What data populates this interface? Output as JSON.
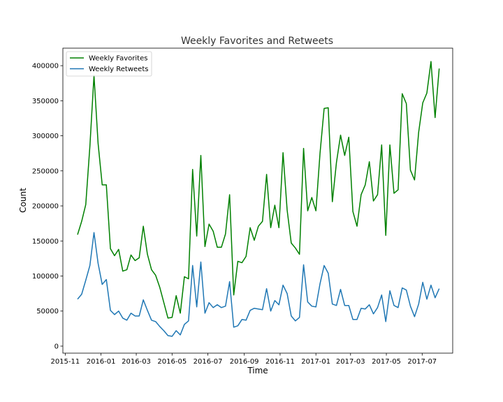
{
  "chart_data": {
    "type": "line",
    "title": "Weekly Favorites and Retweets",
    "xlabel": "Time",
    "ylabel": "Count",
    "x_range": [
      "2015-10-28",
      "2017-08-22"
    ],
    "ylim": [
      -10000,
      425000
    ],
    "legend_position": "top-left",
    "grid": false,
    "x_ticks": [
      {
        "date": "2015-11-01",
        "label": "2015-11"
      },
      {
        "date": "2016-01-01",
        "label": "2016-01"
      },
      {
        "date": "2016-03-01",
        "label": "2016-03"
      },
      {
        "date": "2016-05-01",
        "label": "2016-05"
      },
      {
        "date": "2016-07-01",
        "label": "2016-07"
      },
      {
        "date": "2016-09-01",
        "label": "2016-09"
      },
      {
        "date": "2016-11-01",
        "label": "2016-11"
      },
      {
        "date": "2017-01-01",
        "label": "2017-01"
      },
      {
        "date": "2017-03-01",
        "label": "2017-03"
      },
      {
        "date": "2017-05-01",
        "label": "2017-05"
      },
      {
        "date": "2017-07-01",
        "label": "2017-07"
      }
    ],
    "y_ticks": [
      {
        "value": 0,
        "label": "0"
      },
      {
        "value": 50000,
        "label": "50000"
      },
      {
        "value": 100000,
        "label": "100000"
      },
      {
        "value": 150000,
        "label": "150000"
      },
      {
        "value": 200000,
        "label": "200000"
      },
      {
        "value": 250000,
        "label": "250000"
      },
      {
        "value": 300000,
        "label": "300000"
      },
      {
        "value": 350000,
        "label": "350000"
      },
      {
        "value": 400000,
        "label": "400000"
      }
    ],
    "series": [
      {
        "name": "Weekly Favorites",
        "color": "#008000",
        "points": [
          [
            "2015-11-22",
            159000
          ],
          [
            "2015-11-29",
            178000
          ],
          [
            "2015-12-06",
            202000
          ],
          [
            "2015-12-13",
            285000
          ],
          [
            "2015-12-20",
            386000
          ],
          [
            "2015-12-27",
            289000
          ],
          [
            "2016-01-03",
            230000
          ],
          [
            "2016-01-10",
            230000
          ],
          [
            "2016-01-17",
            139000
          ],
          [
            "2016-01-24",
            129000
          ],
          [
            "2016-01-31",
            138000
          ],
          [
            "2016-02-07",
            107000
          ],
          [
            "2016-02-14",
            109000
          ],
          [
            "2016-02-21",
            130000
          ],
          [
            "2016-02-28",
            122000
          ],
          [
            "2016-03-06",
            126000
          ],
          [
            "2016-03-13",
            171000
          ],
          [
            "2016-03-20",
            131000
          ],
          [
            "2016-03-27",
            109000
          ],
          [
            "2016-04-03",
            101000
          ],
          [
            "2016-04-10",
            84000
          ],
          [
            "2016-04-17",
            62000
          ],
          [
            "2016-04-24",
            40000
          ],
          [
            "2016-05-01",
            41000
          ],
          [
            "2016-05-08",
            72000
          ],
          [
            "2016-05-15",
            47000
          ],
          [
            "2016-05-22",
            99000
          ],
          [
            "2016-05-29",
            96000
          ],
          [
            "2016-06-05",
            252000
          ],
          [
            "2016-06-12",
            157000
          ],
          [
            "2016-06-19",
            272000
          ],
          [
            "2016-06-26",
            142000
          ],
          [
            "2016-07-03",
            174000
          ],
          [
            "2016-07-10",
            164000
          ],
          [
            "2016-07-17",
            141000
          ],
          [
            "2016-07-24",
            141000
          ],
          [
            "2016-07-31",
            160000
          ],
          [
            "2016-08-07",
            216000
          ],
          [
            "2016-08-14",
            73000
          ],
          [
            "2016-08-21",
            121000
          ],
          [
            "2016-08-28",
            119000
          ],
          [
            "2016-09-04",
            128000
          ],
          [
            "2016-09-11",
            169000
          ],
          [
            "2016-09-18",
            151000
          ],
          [
            "2016-09-25",
            171000
          ],
          [
            "2016-10-02",
            178000
          ],
          [
            "2016-10-09",
            245000
          ],
          [
            "2016-10-16",
            169000
          ],
          [
            "2016-10-23",
            201000
          ],
          [
            "2016-10-30",
            169000
          ],
          [
            "2016-11-06",
            276000
          ],
          [
            "2016-11-13",
            194000
          ],
          [
            "2016-11-20",
            147000
          ],
          [
            "2016-11-27",
            140000
          ],
          [
            "2016-12-04",
            131000
          ],
          [
            "2016-12-11",
            282000
          ],
          [
            "2016-12-18",
            193000
          ],
          [
            "2016-12-25",
            212000
          ],
          [
            "2017-01-01",
            193000
          ],
          [
            "2017-01-08",
            275000
          ],
          [
            "2017-01-15",
            339000
          ],
          [
            "2017-01-22",
            340000
          ],
          [
            "2017-01-29",
            206000
          ],
          [
            "2017-02-05",
            262000
          ],
          [
            "2017-02-12",
            301000
          ],
          [
            "2017-02-19",
            272000
          ],
          [
            "2017-02-26",
            298000
          ],
          [
            "2017-03-05",
            192000
          ],
          [
            "2017-03-12",
            171000
          ],
          [
            "2017-03-19",
            216000
          ],
          [
            "2017-03-26",
            230000
          ],
          [
            "2017-04-02",
            263000
          ],
          [
            "2017-04-09",
            207000
          ],
          [
            "2017-04-16",
            216000
          ],
          [
            "2017-04-23",
            287000
          ],
          [
            "2017-04-30",
            158000
          ],
          [
            "2017-05-07",
            287000
          ],
          [
            "2017-05-14",
            218000
          ],
          [
            "2017-05-21",
            223000
          ],
          [
            "2017-05-28",
            360000
          ],
          [
            "2017-06-04",
            346000
          ],
          [
            "2017-06-11",
            251000
          ],
          [
            "2017-06-18",
            237000
          ],
          [
            "2017-06-25",
            305000
          ],
          [
            "2017-07-02",
            347000
          ],
          [
            "2017-07-09",
            361000
          ],
          [
            "2017-07-16",
            406000
          ],
          [
            "2017-07-23",
            326000
          ],
          [
            "2017-07-30",
            396000
          ]
        ]
      },
      {
        "name": "Weekly Retweets",
        "color": "#1f77b4",
        "points": [
          [
            "2015-11-22",
            67000
          ],
          [
            "2015-11-29",
            74000
          ],
          [
            "2015-12-06",
            94000
          ],
          [
            "2015-12-13",
            115000
          ],
          [
            "2015-12-20",
            162000
          ],
          [
            "2015-12-27",
            118000
          ],
          [
            "2016-01-03",
            88000
          ],
          [
            "2016-01-10",
            95000
          ],
          [
            "2016-01-17",
            51000
          ],
          [
            "2016-01-24",
            45000
          ],
          [
            "2016-01-31",
            50000
          ],
          [
            "2016-02-07",
            40000
          ],
          [
            "2016-02-14",
            37000
          ],
          [
            "2016-02-21",
            47000
          ],
          [
            "2016-02-28",
            43000
          ],
          [
            "2016-03-06",
            43000
          ],
          [
            "2016-03-13",
            66000
          ],
          [
            "2016-03-20",
            51000
          ],
          [
            "2016-03-27",
            37000
          ],
          [
            "2016-04-03",
            35000
          ],
          [
            "2016-04-10",
            28000
          ],
          [
            "2016-04-17",
            22000
          ],
          [
            "2016-04-24",
            15000
          ],
          [
            "2016-05-01",
            14000
          ],
          [
            "2016-05-08",
            22000
          ],
          [
            "2016-05-15",
            16000
          ],
          [
            "2016-05-22",
            31000
          ],
          [
            "2016-05-29",
            36000
          ],
          [
            "2016-06-05",
            115000
          ],
          [
            "2016-06-12",
            56000
          ],
          [
            "2016-06-19",
            120000
          ],
          [
            "2016-06-26",
            47000
          ],
          [
            "2016-07-03",
            62000
          ],
          [
            "2016-07-10",
            55000
          ],
          [
            "2016-07-17",
            59000
          ],
          [
            "2016-07-24",
            55000
          ],
          [
            "2016-07-31",
            57000
          ],
          [
            "2016-08-07",
            92000
          ],
          [
            "2016-08-14",
            27000
          ],
          [
            "2016-08-21",
            29000
          ],
          [
            "2016-08-28",
            38000
          ],
          [
            "2016-09-04",
            37000
          ],
          [
            "2016-09-11",
            51000
          ],
          [
            "2016-09-18",
            54000
          ],
          [
            "2016-09-25",
            53000
          ],
          [
            "2016-10-02",
            52000
          ],
          [
            "2016-10-09",
            82000
          ],
          [
            "2016-10-16",
            50000
          ],
          [
            "2016-10-23",
            65000
          ],
          [
            "2016-10-30",
            59000
          ],
          [
            "2016-11-06",
            87000
          ],
          [
            "2016-11-13",
            75000
          ],
          [
            "2016-11-20",
            43000
          ],
          [
            "2016-11-27",
            36000
          ],
          [
            "2016-12-04",
            41000
          ],
          [
            "2016-12-11",
            116000
          ],
          [
            "2016-12-18",
            63000
          ],
          [
            "2016-12-25",
            57000
          ],
          [
            "2017-01-01",
            56000
          ],
          [
            "2017-01-08",
            89000
          ],
          [
            "2017-01-15",
            115000
          ],
          [
            "2017-01-22",
            104000
          ],
          [
            "2017-01-29",
            60000
          ],
          [
            "2017-02-05",
            58000
          ],
          [
            "2017-02-12",
            81000
          ],
          [
            "2017-02-19",
            58000
          ],
          [
            "2017-02-26",
            58000
          ],
          [
            "2017-03-05",
            38000
          ],
          [
            "2017-03-12",
            38000
          ],
          [
            "2017-03-19",
            54000
          ],
          [
            "2017-03-26",
            53000
          ],
          [
            "2017-04-02",
            59000
          ],
          [
            "2017-04-09",
            46000
          ],
          [
            "2017-04-16",
            55000
          ],
          [
            "2017-04-23",
            73000
          ],
          [
            "2017-04-30",
            35000
          ],
          [
            "2017-05-07",
            79000
          ],
          [
            "2017-05-14",
            58000
          ],
          [
            "2017-05-21",
            55000
          ],
          [
            "2017-05-28",
            83000
          ],
          [
            "2017-06-04",
            80000
          ],
          [
            "2017-06-11",
            57000
          ],
          [
            "2017-06-18",
            42000
          ],
          [
            "2017-06-25",
            60000
          ],
          [
            "2017-07-02",
            91000
          ],
          [
            "2017-07-09",
            67000
          ],
          [
            "2017-07-16",
            87000
          ],
          [
            "2017-07-23",
            69000
          ],
          [
            "2017-07-30",
            82000
          ]
        ]
      }
    ]
  }
}
